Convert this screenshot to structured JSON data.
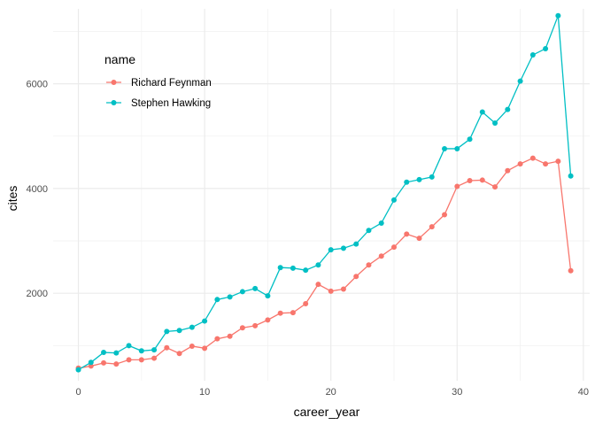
{
  "chart_data": {
    "type": "line",
    "title": "",
    "xlabel": "career_year",
    "ylabel": "cites",
    "xlim": [
      -2,
      40.5
    ],
    "ylim": [
      330,
      7430
    ],
    "xticks": [
      0,
      10,
      20,
      30,
      40
    ],
    "yticks": [
      2000,
      4000,
      6000
    ],
    "xtick_labels": [
      "0",
      "10",
      "20",
      "30",
      "40"
    ],
    "ytick_labels": [
      "2000",
      "4000",
      "6000"
    ],
    "grid": true,
    "legend": {
      "title": "name",
      "placement": "top-left"
    },
    "x": [
      0,
      1,
      2,
      3,
      4,
      5,
      6,
      7,
      8,
      9,
      10,
      11,
      12,
      13,
      14,
      15,
      16,
      17,
      18,
      19,
      20,
      21,
      22,
      23,
      24,
      25,
      26,
      27,
      28,
      29,
      30,
      31,
      32,
      33,
      34,
      35,
      36,
      37,
      38,
      39
    ],
    "series": [
      {
        "name": "Richard Feynman",
        "color": "#F8766D",
        "values": [
          570,
          610,
          670,
          650,
          730,
          730,
          760,
          960,
          850,
          990,
          950,
          1130,
          1180,
          1340,
          1380,
          1490,
          1620,
          1630,
          1800,
          2170,
          2040,
          2080,
          2320,
          2540,
          2710,
          2880,
          3130,
          3050,
          3270,
          3500,
          4040,
          4150,
          4160,
          4030,
          4340,
          4470,
          4580,
          4470,
          4520,
          2430
        ]
      },
      {
        "name": "Stephen Hawking",
        "color": "#00BFC4",
        "values": [
          540,
          680,
          870,
          860,
          1000,
          900,
          920,
          1270,
          1290,
          1350,
          1470,
          1880,
          1930,
          2030,
          2090,
          1950,
          2490,
          2480,
          2440,
          2540,
          2830,
          2860,
          2940,
          3200,
          3340,
          3780,
          4120,
          4170,
          4220,
          4760,
          4760,
          4940,
          5460,
          5250,
          5510,
          6050,
          6550,
          6670,
          7300,
          4240
        ]
      }
    ]
  }
}
